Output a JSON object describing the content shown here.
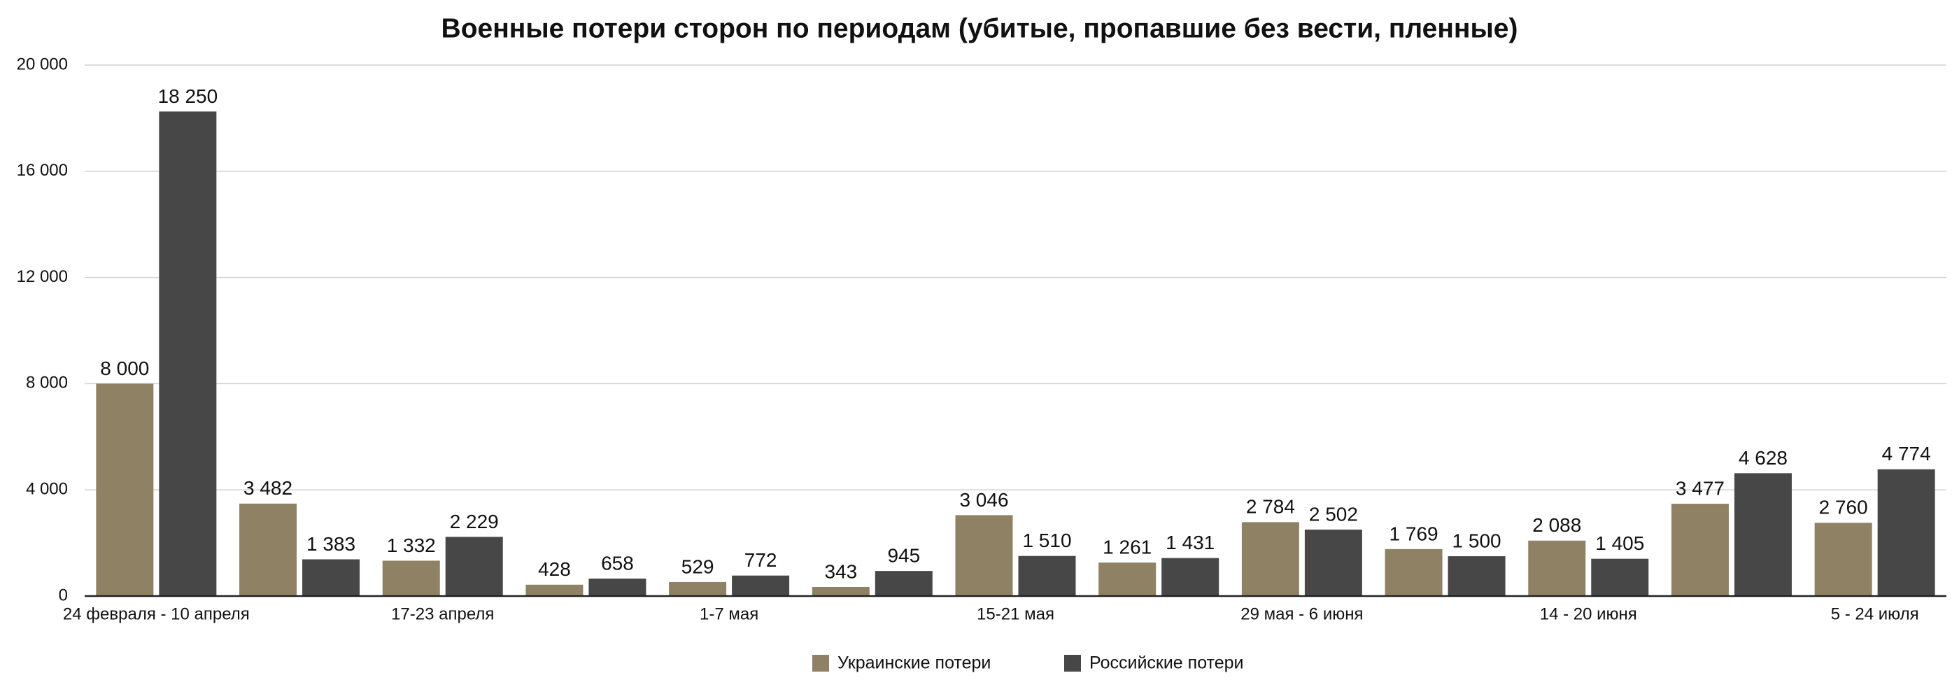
{
  "chart_data": {
    "type": "bar",
    "title": "Военные потери сторон по периодам (убитые, пропавшие без вести, пленные)",
    "categories": [
      "24 февраля - 10 апреля",
      null,
      "17-23 апреля",
      null,
      "1-7 мая",
      null,
      "15-21 мая",
      null,
      "29 мая - 6 июня",
      null,
      "14 - 20 июня",
      null,
      "5 - 24 июля"
    ],
    "series": [
      {
        "name": "Украинские потери",
        "color": "#8f8264",
        "values": [
          8000,
          3482,
          1332,
          428,
          529,
          343,
          3046,
          1261,
          2784,
          1769,
          2088,
          3477,
          2760
        ],
        "value_labels": [
          "8 000",
          "3 482",
          "1 332",
          "428",
          "529",
          "343",
          "3 046",
          "1 261",
          "2 784",
          "1 769",
          "2 088",
          "3 477",
          "2 760"
        ]
      },
      {
        "name": "Российские потери",
        "color": "#474747",
        "values": [
          18250,
          1383,
          2229,
          658,
          772,
          945,
          1510,
          1431,
          2502,
          1500,
          1405,
          4628,
          4774
        ],
        "value_labels": [
          "18 250",
          "1 383",
          "2 229",
          "658",
          "772",
          "945",
          "1 510",
          "1 431",
          "2 502",
          "1 500",
          "1 405",
          "4 628",
          "4 774"
        ]
      }
    ],
    "ylim": [
      0,
      20000
    ],
    "yticks": [
      0,
      {
        "value": 4000,
        "label": "4 000"
      },
      {
        "value": 8000,
        "label": "8 000"
      },
      {
        "value": 12000,
        "label": "12 000"
      },
      {
        "value": 16000,
        "label": "16 000"
      },
      {
        "value": 20000,
        "label": "20 000"
      }
    ],
    "grid": true,
    "legend": "bottom"
  }
}
